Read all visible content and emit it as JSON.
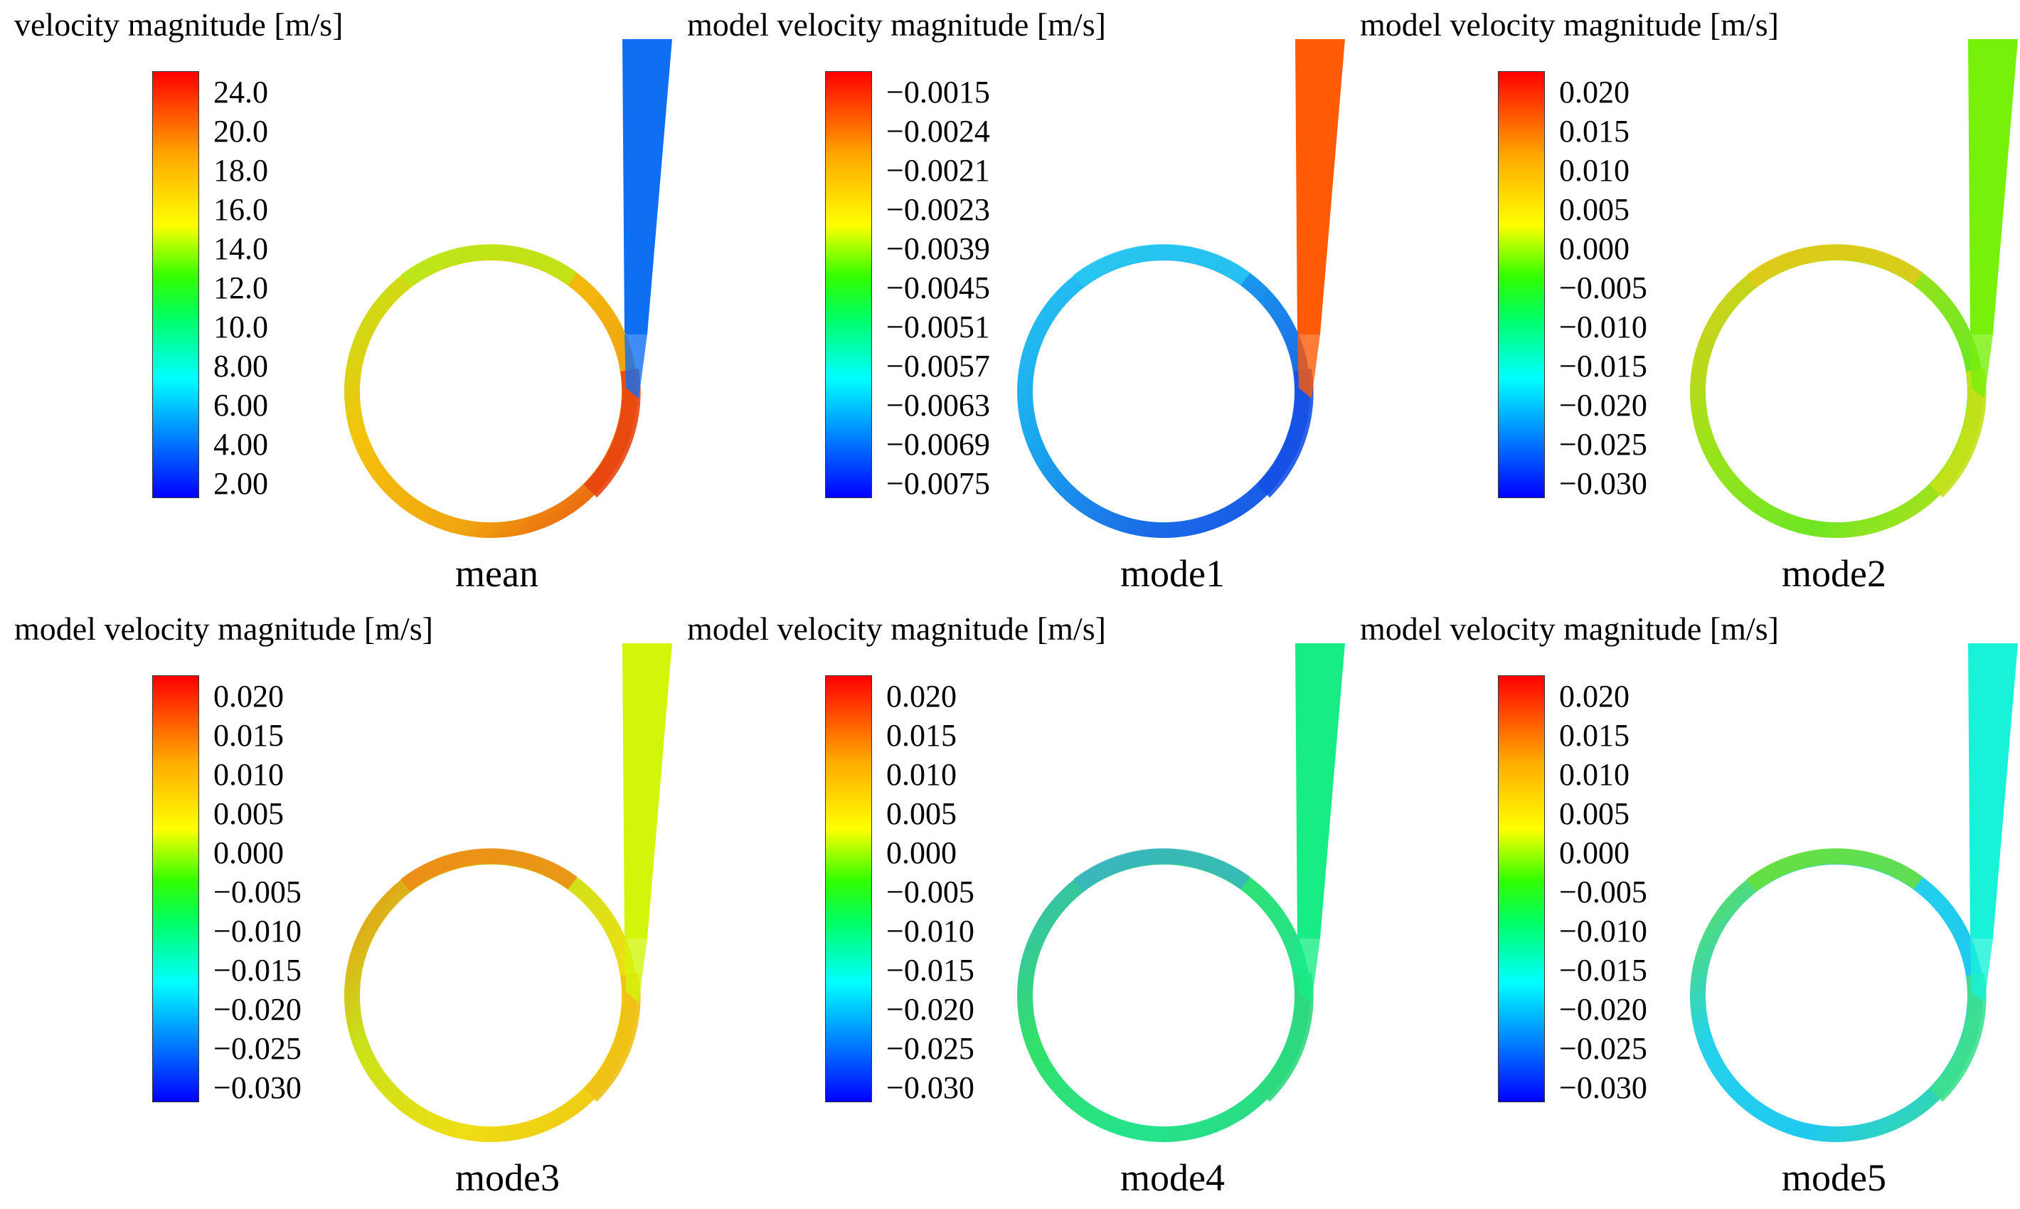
{
  "panels": [
    {
      "title": "velocity magnitude [m/s]",
      "ticks": [
        "24.0",
        "20.0",
        "18.0",
        "16.0",
        "14.0",
        "12.0",
        "10.0",
        "8.00",
        "6.00",
        "4.00",
        "2.00"
      ],
      "caption": "mean",
      "colors": {
        "outlet": "#0f6ff2",
        "left": "#f5c20c",
        "bottom": "#f0a40f",
        "right": "#e8440f",
        "top": "#b8e81a"
      }
    },
    {
      "title": "model velocity magnitude [m/s]",
      "ticks": [
        "−0.0015",
        "−0.0024",
        "−0.0021",
        "−0.0023",
        "−0.0039",
        "−0.0045",
        "−0.0051",
        "−0.0057",
        "−0.0063",
        "−0.0069",
        "−0.0075"
      ],
      "caption": "mode1",
      "colors": {
        "outlet": "#ff5a05",
        "left": "#1aa7ef",
        "bottom": "#1b6fe6",
        "right": "#1650e6",
        "top": "#28c8f0"
      }
    },
    {
      "title": "model velocity magnitude [m/s]",
      "ticks": [
        "0.020",
        "0.015",
        "0.010",
        "0.005",
        "0.000",
        "−0.005",
        "−0.010",
        "−0.015",
        "−0.020",
        "−0.025",
        "−0.030"
      ],
      "caption": "mode2",
      "colors": {
        "outlet": "#77f00a",
        "left": "#9ee31a",
        "bottom": "#6ee624",
        "right": "#c5e019",
        "top": "#e2c91a"
      }
    },
    {
      "title": "model velocity magnitude [m/s]",
      "ticks": [
        "0.020",
        "0.015",
        "0.010",
        "0.005",
        "0.000",
        "−0.005",
        "−0.010",
        "−0.015",
        "−0.020",
        "−0.025",
        "−0.030"
      ],
      "caption": "mode3",
      "colors": {
        "outlet": "#d2f50a",
        "left": "#c8e21a",
        "bottom": "#eede13",
        "right": "#f0c016",
        "top": "#ee8a18"
      }
    },
    {
      "title": "model velocity magnitude [m/s]",
      "ticks": [
        "0.020",
        "0.015",
        "0.010",
        "0.005",
        "0.000",
        "−0.005",
        "−0.010",
        "−0.015",
        "−0.020",
        "−0.025",
        "−0.030"
      ],
      "caption": "mode4",
      "colors": {
        "outlet": "#18ec84",
        "left": "#32e06a",
        "bottom": "#24e38c",
        "right": "#2ed87d",
        "top": "#3ab4c2"
      }
    },
    {
      "title": "model velocity magnitude [m/s]",
      "ticks": [
        "0.020",
        "0.015",
        "0.010",
        "0.005",
        "0.000",
        "−0.005",
        "−0.010",
        "−0.015",
        "−0.020",
        "−0.025",
        "−0.030"
      ],
      "caption": "mode5",
      "colors": {
        "outlet": "#17f2d8",
        "left": "#24d2ec",
        "bottom": "#20c8ee",
        "right": "#3ee08c",
        "top": "#6ae038"
      }
    }
  ]
}
